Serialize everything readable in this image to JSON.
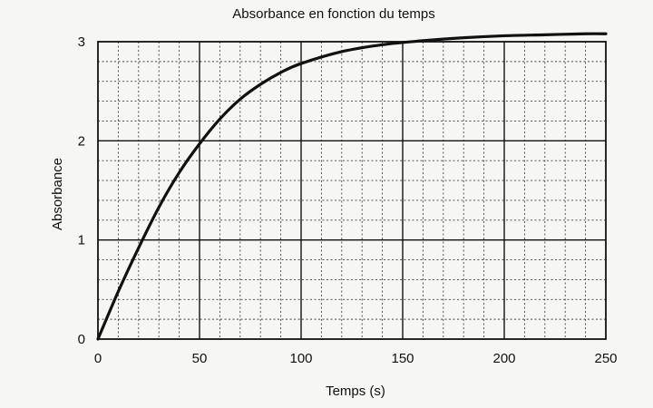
{
  "chart_data": {
    "type": "line",
    "title": "Absorbance en fonction du temps",
    "xlabel": "Temps (s)",
    "ylabel": "Absorbance",
    "xlim": [
      0,
      250
    ],
    "ylim": [
      0,
      3
    ],
    "x_ticks": [
      0,
      50,
      100,
      150,
      200,
      250
    ],
    "y_ticks": [
      0,
      1,
      2,
      3
    ],
    "x_ticks_labels": [
      "0",
      "50",
      "100",
      "150",
      "200",
      "250"
    ],
    "y_ticks_labels": [
      "0",
      "1",
      "2",
      "3"
    ],
    "x_minor_step": 10,
    "y_minor_step": 0.2,
    "grid": true,
    "series": [
      {
        "x": [
          0,
          10,
          20,
          30,
          40,
          50,
          60,
          70,
          80,
          90,
          100,
          120,
          140,
          160,
          180,
          200,
          220,
          240,
          250
        ],
        "values": [
          0,
          0.48,
          0.92,
          1.33,
          1.68,
          1.97,
          2.22,
          2.42,
          2.57,
          2.69,
          2.78,
          2.9,
          2.97,
          3.01,
          3.04,
          3.06,
          3.07,
          3.08,
          3.08
        ]
      }
    ]
  }
}
